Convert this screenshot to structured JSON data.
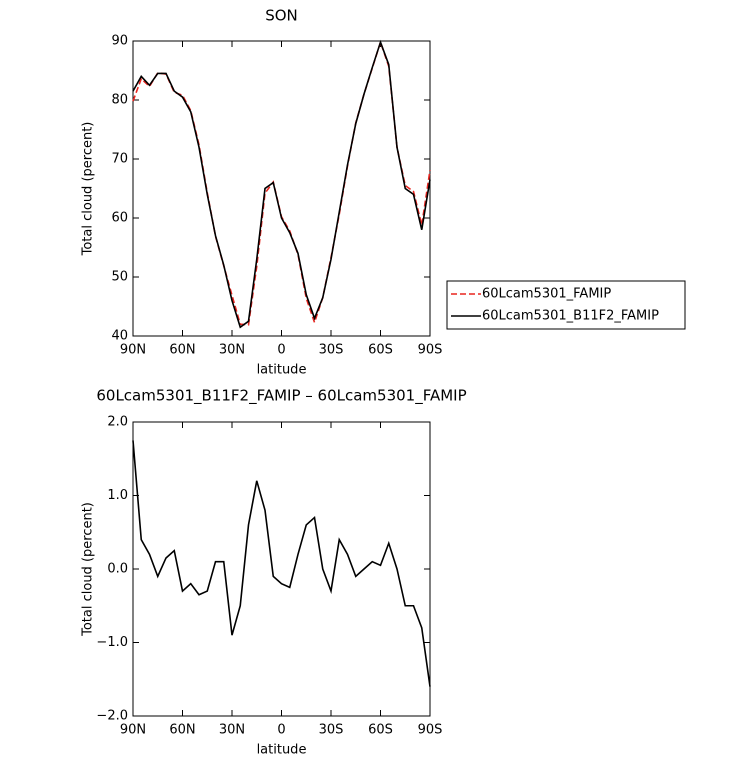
{
  "chart_data": [
    {
      "type": "line",
      "title": "SON",
      "xlabel": "latitude",
      "ylabel": "Total cloud (percent)",
      "x": [
        90,
        85,
        80,
        75,
        70,
        65,
        60,
        55,
        50,
        45,
        40,
        35,
        30,
        25,
        20,
        15,
        10,
        5,
        0,
        -5,
        -10,
        -15,
        -20,
        -25,
        -30,
        -35,
        -40,
        -45,
        -50,
        -55,
        -60,
        -65,
        -70,
        -75,
        -80,
        -85,
        -90
      ],
      "series": [
        {
          "name": "60Lcam5301_FAMIP",
          "color": "#e8251f",
          "dashed": true,
          "values": [
            79.8,
            83.6,
            82.3,
            84.6,
            84.4,
            81.3,
            80.8,
            78.2,
            72.4,
            64.3,
            56.9,
            51.9,
            46.9,
            42,
            41.9,
            51.8,
            64.2,
            66.1,
            60.2,
            57.8,
            53.8,
            46.4,
            42.3,
            46.5,
            53.3,
            60.6,
            68.8,
            76.1,
            81,
            85.4,
            89.8,
            85.7,
            72,
            65.5,
            64.5,
            58.8,
            68.1
          ]
        },
        {
          "name": "60Lcam5301_B11F2_FAMIP",
          "color": "#000000",
          "dashed": false,
          "values": [
            81.5,
            84,
            82.5,
            84.5,
            84.5,
            81.5,
            80.5,
            78,
            72,
            64,
            57,
            52,
            46,
            41.5,
            42.5,
            53,
            65,
            66,
            60,
            57.5,
            54,
            47,
            43,
            46.5,
            53,
            61,
            69,
            76,
            81,
            85.5,
            89.8,
            86,
            72,
            65,
            64,
            58,
            66.5
          ]
        }
      ],
      "xlim": [
        90,
        -90
      ],
      "xticks": [
        {
          "value": 90,
          "label": "90N"
        },
        {
          "value": 60,
          "label": "60N"
        },
        {
          "value": 30,
          "label": "30N"
        },
        0,
        {
          "value": -30,
          "label": "30S"
        },
        {
          "value": -60,
          "label": "60S"
        },
        {
          "value": -90,
          "label": "90S"
        }
      ],
      "ylim": [
        40,
        90
      ],
      "yticks": [
        40,
        50,
        60,
        70,
        80,
        90
      ],
      "legend": "right"
    },
    {
      "type": "line",
      "title": "60Lcam5301_B11F2_FAMIP – 60Lcam5301_FAMIP",
      "xlabel": "latitude",
      "ylabel": "Total cloud (percent)",
      "x": [
        90,
        85,
        80,
        75,
        70,
        65,
        60,
        55,
        50,
        45,
        40,
        35,
        30,
        25,
        20,
        15,
        10,
        5,
        0,
        -5,
        -10,
        -15,
        -20,
        -25,
        -30,
        -35,
        -40,
        -45,
        -50,
        -55,
        -60,
        -65,
        -70,
        -75,
        -80,
        -85,
        -90
      ],
      "series": [
        {
          "color": "#000000",
          "dashed": false,
          "values": [
            1.75,
            0.4,
            0.2,
            -0.1,
            0.15,
            0.25,
            -0.3,
            -0.2,
            -0.35,
            -0.3,
            0.1,
            0.1,
            -0.9,
            -0.5,
            0.6,
            1.2,
            0.8,
            -0.1,
            -0.2,
            -0.25,
            0.2,
            0.6,
            0.7,
            0,
            -0.3,
            0.4,
            0.2,
            -0.1,
            0,
            0.1,
            0.05,
            0.35,
            0,
            -0.5,
            -0.5,
            -0.8,
            -1.6
          ]
        }
      ],
      "xlim": [
        90,
        -90
      ],
      "xticks": [
        {
          "value": 90,
          "label": "90N"
        },
        {
          "value": 60,
          "label": "60N"
        },
        {
          "value": 30,
          "label": "30N"
        },
        0,
        {
          "value": -30,
          "label": "30S"
        },
        {
          "value": -60,
          "label": "60S"
        },
        {
          "value": -90,
          "label": "90S"
        }
      ],
      "ylim": [
        -2,
        2
      ],
      "yticks": [
        {
          "value": -2,
          "label": "−2.0"
        },
        {
          "value": -1,
          "label": "−1.0"
        },
        {
          "value": 0,
          "label": "0.0"
        },
        {
          "value": 1,
          "label": "1.0"
        },
        {
          "value": 2,
          "label": "2.0"
        }
      ]
    }
  ]
}
